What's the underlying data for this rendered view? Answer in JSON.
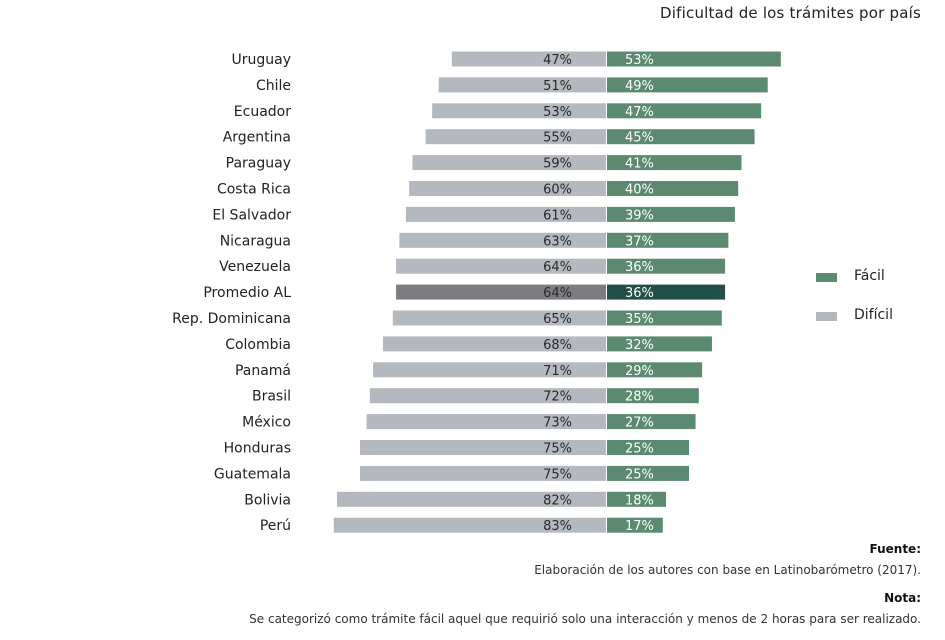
{
  "chart_data": {
    "type": "bar",
    "orientation": "horizontal-diverging",
    "title": "Dificultad de los trámites por país",
    "categories": [
      "Uruguay",
      "Chile",
      "Ecuador",
      "Argentina",
      "Paraguay",
      "Costa Rica",
      "El Salvador",
      "Nicaragua",
      "Venezuela",
      "Promedio AL",
      "Rep. Dominicana",
      "Colombia",
      "Panamá",
      "Brasil",
      "México",
      "Honduras",
      "Guatemala",
      "Bolivia",
      "Perú"
    ],
    "highlight_category": "Promedio AL",
    "series": [
      {
        "name": "Difícil",
        "color": "#b4b8bf",
        "highlight_color": "#7c7d80",
        "values": [
          47,
          51,
          53,
          55,
          59,
          60,
          61,
          63,
          64,
          64,
          65,
          68,
          71,
          72,
          73,
          75,
          75,
          82,
          83
        ]
      },
      {
        "name": "Fácil",
        "color": "#5b8a70",
        "highlight_color": "#234f49",
        "values": [
          53,
          49,
          47,
          45,
          41,
          40,
          39,
          37,
          36,
          36,
          35,
          32,
          29,
          28,
          27,
          25,
          25,
          18,
          17
        ]
      }
    ],
    "legend": [
      "Fácil",
      "Difícil"
    ],
    "legend_position": "right",
    "unit": "%"
  },
  "source": {
    "heading": "Fuente:",
    "text": "Elaboración de los autores con base en Latinobarómetro (2017)."
  },
  "note": {
    "heading": "Nota:",
    "text": "Se categorizó como trámite fácil aquel que requirió solo una interacción y menos de 2 horas para ser realizado."
  }
}
